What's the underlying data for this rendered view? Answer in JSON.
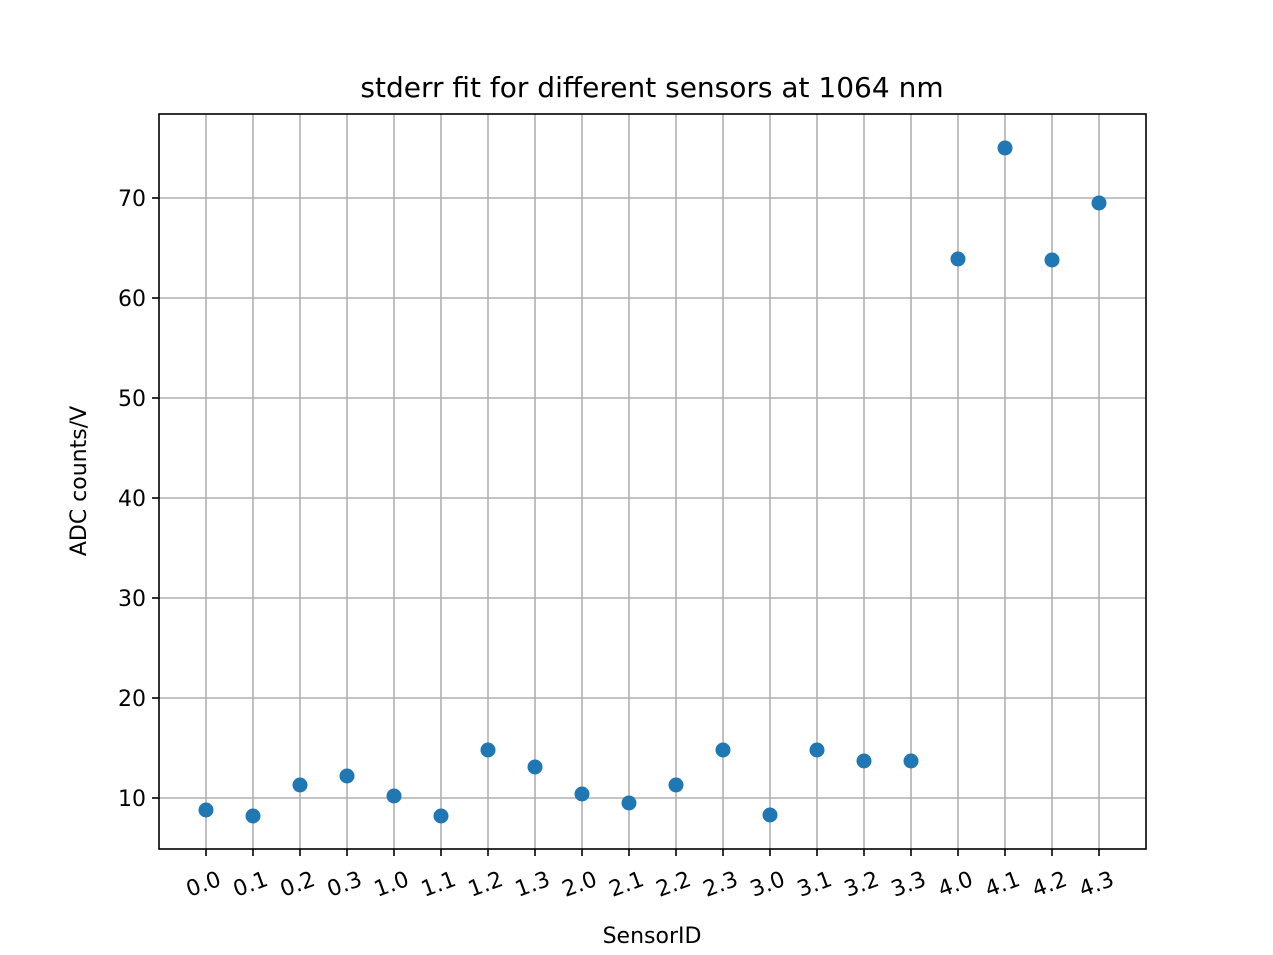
{
  "chart_data": {
    "type": "scatter",
    "title": "stderr fit for different sensors at 1064 nm",
    "xlabel": "SensorID",
    "ylabel": "ADC counts/V",
    "categories": [
      "0.0",
      "0.1",
      "0.2",
      "0.3",
      "1.0",
      "1.1",
      "1.2",
      "1.3",
      "2.0",
      "2.1",
      "2.2",
      "2.3",
      "3.0",
      "3.1",
      "3.2",
      "3.3",
      "4.0",
      "4.1",
      "4.2",
      "4.3"
    ],
    "values": [
      8.8,
      8.2,
      11.3,
      12.2,
      10.2,
      8.2,
      14.8,
      13.1,
      10.4,
      9.5,
      11.3,
      14.8,
      8.3,
      14.8,
      13.7,
      13.7,
      63.9,
      75.0,
      63.8,
      69.5
    ],
    "ylim": [
      4.9,
      78.4
    ],
    "yticks": [
      10,
      20,
      30,
      40,
      50,
      60,
      70
    ],
    "xtick_rotation_deg": -20,
    "grid": true,
    "marker_color": "#1f77b4"
  }
}
